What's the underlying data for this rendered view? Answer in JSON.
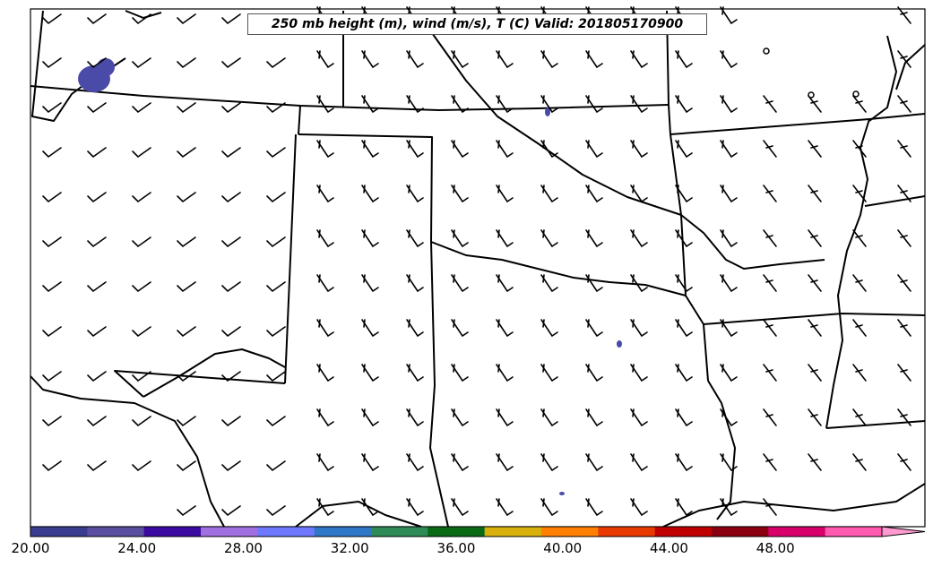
{
  "title": "250 mb height (m), wind (m/s), T (C) Valid: 201805170900",
  "colorbar": {
    "min": 20,
    "max": 52,
    "tick_labels": [
      "20.00",
      "24.00",
      "28.00",
      "32.00",
      "36.00",
      "40.00",
      "44.00",
      "48.00"
    ],
    "tick_values": [
      20,
      24,
      28,
      32,
      36,
      40,
      44,
      48
    ],
    "colors": [
      "#3a3d8f",
      "#5a4ea0",
      "#3c0aa0",
      "#a070e0",
      "#6f79ff",
      "#2f78c8",
      "#2e8b57",
      "#0a6a14",
      "#d7b00c",
      "#ff8000",
      "#e83a00",
      "#c00000",
      "#8b0010",
      "#d8006a",
      "#ff5ab0"
    ],
    "extend_color": "#ff9ad0"
  },
  "colors": {
    "temperature_patch": "#4a4aa8",
    "boundary": "#000000"
  }
}
